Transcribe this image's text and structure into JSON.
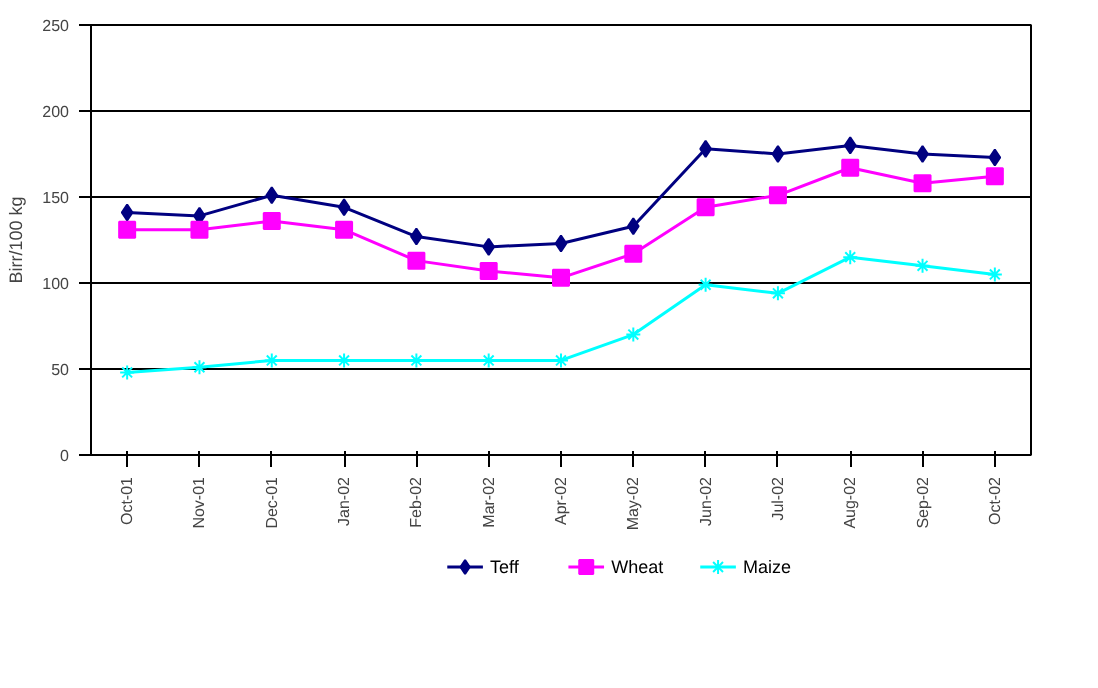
{
  "chart_data": {
    "type": "line",
    "ylabel": "Birr/100 kg",
    "categories": [
      "Oct-01",
      "Nov-01",
      "Dec-01",
      "Jan-02",
      "Feb-02",
      "Mar-02",
      "Apr-02",
      "May-02",
      "Jun-02",
      "Jul-02",
      "Aug-02",
      "Sep-02",
      "Oct-02"
    ],
    "series": [
      {
        "name": "Teff",
        "color": "#000080",
        "marker": "diamond",
        "values": [
          141,
          139,
          151,
          144,
          127,
          121,
          123,
          133,
          178,
          175,
          180,
          175,
          173
        ]
      },
      {
        "name": "Wheat",
        "color": "#ff00ff",
        "marker": "square",
        "values": [
          131,
          131,
          136,
          131,
          113,
          107,
          103,
          117,
          144,
          151,
          167,
          158,
          162
        ]
      },
      {
        "name": "Maize",
        "color": "#00ffff",
        "marker": "cross",
        "values": [
          48,
          51,
          55,
          55,
          55,
          55,
          55,
          70,
          99,
          94,
          115,
          110,
          105
        ]
      }
    ],
    "ylim": [
      0,
      250
    ],
    "yticks": [
      0,
      50,
      100,
      150,
      200,
      250
    ],
    "grid": "y",
    "legend": "bottom",
    "line_style": "solid"
  }
}
